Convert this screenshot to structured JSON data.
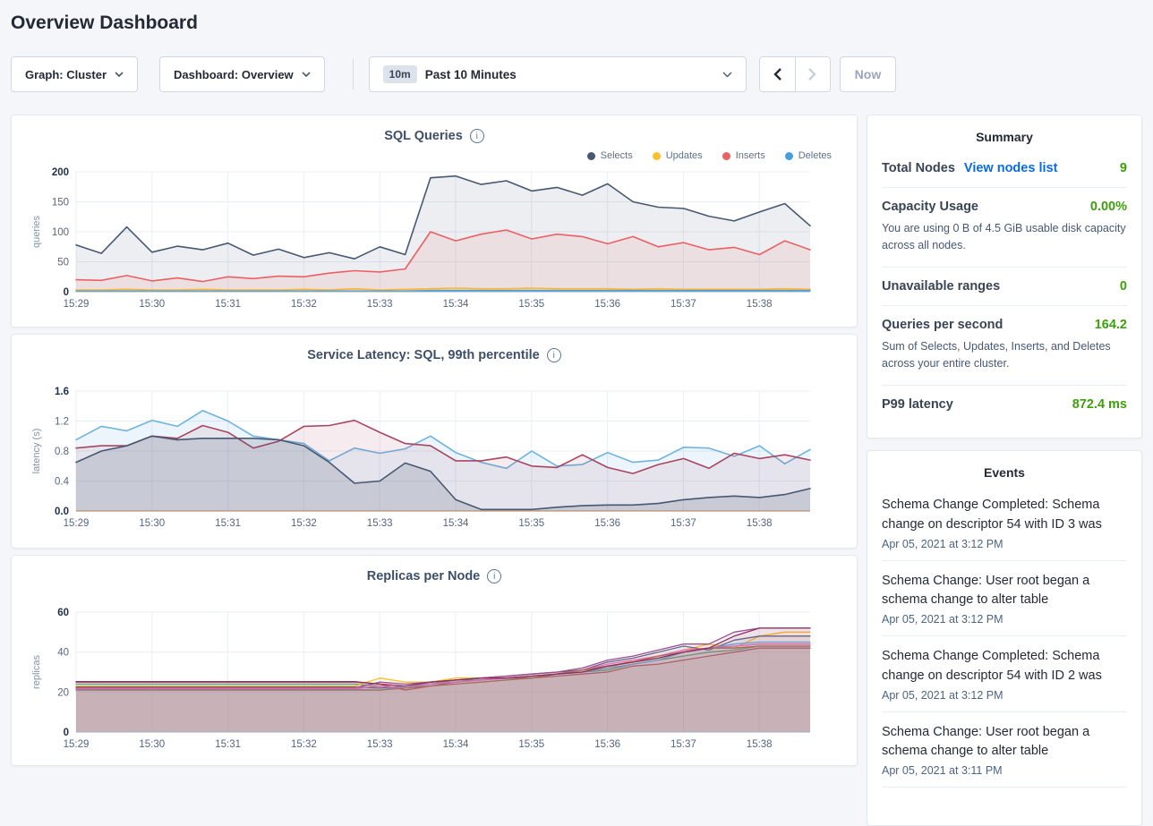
{
  "page": {
    "title": "Overview Dashboard"
  },
  "toolbar": {
    "graph_selector": "Graph: Cluster",
    "dashboard_selector": "Dashboard: Overview",
    "range_badge": "10m",
    "range_label": "Past 10 Minutes",
    "now_label": "Now"
  },
  "colors": {
    "value_green": "#3da00b",
    "link_blue": "#0a6ce0",
    "selects": "#475872",
    "updates": "#ffbf2b",
    "inserts": "#ec6063",
    "deletes": "#449fdc"
  },
  "summary": {
    "title": "Summary",
    "total_nodes": {
      "label": "Total Nodes",
      "link": "View nodes list",
      "value": "9"
    },
    "capacity": {
      "label": "Capacity Usage",
      "value": "0.00%",
      "description": "You are using 0 B of 4.5 GiB usable disk capacity across all nodes."
    },
    "unavailable": {
      "label": "Unavailable ranges",
      "value": "0"
    },
    "qps": {
      "label": "Queries per second",
      "value": "164.2",
      "description": "Sum of Selects, Updates, Inserts, and Deletes across your entire cluster."
    },
    "p99": {
      "label": "P99 latency",
      "value": "872.4 ms"
    }
  },
  "events": {
    "title": "Events",
    "items": [
      {
        "text": "Schema Change Completed: Schema change on descriptor 54 with ID 3 was",
        "time": "Apr 05, 2021 at 3:12 PM"
      },
      {
        "text": "Schema Change: User root began a schema change to alter table",
        "time": "Apr 05, 2021 at 3:12 PM"
      },
      {
        "text": "Schema Change Completed: Schema change on descriptor 54 with ID 2 was",
        "time": "Apr 05, 2021 at 3:12 PM"
      },
      {
        "text": "Schema Change: User root began a schema change to alter table",
        "time": "Apr 05, 2021 at 3:11 PM"
      }
    ]
  },
  "chart_data": [
    {
      "type": "area",
      "title": "SQL Queries",
      "ylabel": "queries",
      "ymax": 200,
      "yticks": [
        0,
        50,
        100,
        150,
        200
      ],
      "ytick_labels": [
        "0",
        "50",
        "100",
        "150",
        "200"
      ],
      "x_tick_labels": [
        "15:29",
        "15:30",
        "15:31",
        "15:32",
        "15:33",
        "15:34",
        "15:35",
        "15:36",
        "15:37",
        "15:38"
      ],
      "x_total_minutes": 9.67,
      "legend": true,
      "line_width": 1.6,
      "axis_color": "#9fb0c1",
      "series": [
        {
          "name": "Selects",
          "color": "#475872",
          "fill_alpha": 0.1,
          "values": [
            78,
            64,
            108,
            66,
            76,
            70,
            81,
            61,
            71,
            57,
            65,
            55,
            75,
            62,
            190,
            193,
            179,
            185,
            168,
            174,
            161,
            180,
            150,
            141,
            139,
            126,
            118,
            133,
            147,
            110
          ]
        },
        {
          "name": "Updates",
          "color": "#ffbf2b",
          "fill_alpha": 0.15,
          "values": [
            3,
            3,
            4,
            3,
            3,
            4,
            3,
            3,
            3,
            4,
            3,
            5,
            3,
            4,
            5,
            6,
            5,
            5,
            6,
            5,
            5,
            5,
            4,
            5,
            4,
            4,
            4,
            4,
            5,
            4
          ]
        },
        {
          "name": "Inserts",
          "color": "#ec6063",
          "fill_alpha": 0.1,
          "values": [
            20,
            19,
            27,
            18,
            23,
            17,
            25,
            22,
            26,
            25,
            31,
            35,
            33,
            38,
            100,
            85,
            96,
            103,
            88,
            96,
            92,
            80,
            92,
            75,
            82,
            70,
            74,
            62,
            85,
            70
          ]
        },
        {
          "name": "Deletes",
          "color": "#449fdc",
          "fill_alpha": 0.15,
          "values": [
            1,
            1,
            1,
            1,
            1,
            1,
            1,
            1,
            1,
            1,
            1,
            1,
            1,
            1,
            2,
            2,
            2,
            2,
            2,
            2,
            2,
            2,
            2,
            2,
            2,
            2,
            2,
            2,
            2,
            2
          ]
        }
      ]
    },
    {
      "type": "area",
      "title": "Service Latency: SQL, 99th percentile",
      "ylabel": "latency (s)",
      "ymax": 1.6,
      "yticks": [
        0,
        0.4,
        0.8,
        1.2,
        1.6
      ],
      "ytick_labels": [
        "0.0",
        "0.4",
        "0.8",
        "1.2",
        "1.6"
      ],
      "x_tick_labels": [
        "15:29",
        "15:30",
        "15:31",
        "15:32",
        "15:33",
        "15:34",
        "15:35",
        "15:36",
        "15:37",
        "15:38"
      ],
      "x_total_minutes": 9.67,
      "legend": false,
      "line_width": 1.6,
      "axis_color": "#ad7d55",
      "series": [
        {
          "color": "#6fb3de",
          "fill_alpha": 0.13,
          "values": [
            0.95,
            1.13,
            1.07,
            1.21,
            1.13,
            1.34,
            1.2,
            1.0,
            0.95,
            0.9,
            0.67,
            0.84,
            0.77,
            0.83,
            1.0,
            0.78,
            0.65,
            0.57,
            0.8,
            0.6,
            0.62,
            0.78,
            0.65,
            0.68,
            0.85,
            0.84,
            0.73,
            0.87,
            0.63,
            0.82
          ]
        },
        {
          "color": "#aa4560",
          "fill_alpha": 0.1,
          "values": [
            0.84,
            0.87,
            0.87,
            1.0,
            0.97,
            1.14,
            1.05,
            0.84,
            0.93,
            1.13,
            1.14,
            1.21,
            1.05,
            0.9,
            0.87,
            0.67,
            0.67,
            0.72,
            0.6,
            0.58,
            0.75,
            0.58,
            0.5,
            0.62,
            0.7,
            0.57,
            0.77,
            0.7,
            0.75,
            0.68
          ]
        },
        {
          "color": "#475872",
          "fill_alpha": 0.18,
          "values": [
            0.65,
            0.8,
            0.87,
            1.0,
            0.95,
            0.97,
            0.97,
            0.97,
            0.95,
            0.87,
            0.65,
            0.37,
            0.4,
            0.64,
            0.53,
            0.15,
            0.02,
            0.02,
            0.02,
            0.05,
            0.07,
            0.08,
            0.08,
            0.1,
            0.15,
            0.18,
            0.2,
            0.18,
            0.22,
            0.3
          ]
        }
      ]
    },
    {
      "type": "area",
      "title": "Replicas per Node",
      "ylabel": "replicas",
      "ymax": 60,
      "yticks": [
        0,
        20,
        40,
        60
      ],
      "ytick_labels": [
        "0",
        "20",
        "40",
        "60"
      ],
      "x_tick_labels": [
        "15:29",
        "15:30",
        "15:31",
        "15:32",
        "15:33",
        "15:34",
        "15:35",
        "15:36",
        "15:37",
        "15:38"
      ],
      "x_total_minutes": 9.67,
      "legend": false,
      "line_width": 1.3,
      "axis_color": "#9fb0c1",
      "series": [
        {
          "color": "#c0515d",
          "fill_alpha": 0.08,
          "values": [
            25,
            25,
            25,
            25,
            25,
            25,
            25,
            25,
            25,
            25,
            25,
            25,
            24,
            21,
            23,
            25,
            26,
            27,
            27,
            28,
            29,
            30,
            33,
            34,
            36,
            38,
            40,
            42,
            42,
            42
          ]
        },
        {
          "color": "#4daf7c",
          "fill_alpha": 0.08,
          "values": [
            24,
            24,
            24,
            24,
            24,
            24,
            24,
            24,
            24,
            24,
            24,
            24,
            23,
            22,
            24,
            26,
            26,
            27,
            28,
            29,
            30,
            31,
            34,
            36,
            38,
            40,
            41,
            43,
            43,
            43
          ]
        },
        {
          "color": "#ffbf2b",
          "fill_alpha": 0.08,
          "values": [
            23,
            23,
            23,
            23,
            23,
            23,
            23,
            23,
            23,
            23,
            23,
            23,
            27,
            25,
            25,
            27,
            27,
            28,
            29,
            30,
            31,
            32,
            36,
            38,
            41,
            44,
            42,
            48,
            50,
            50
          ]
        },
        {
          "color": "#5f6c80",
          "fill_alpha": 0.08,
          "values": [
            22.5,
            22.5,
            22.5,
            22.5,
            22.5,
            22.5,
            22.5,
            22.5,
            22.5,
            22.5,
            22.5,
            22.5,
            22,
            23,
            25,
            26,
            27,
            28,
            29,
            30,
            31,
            35,
            37,
            40,
            43,
            41,
            46,
            48,
            48,
            48
          ]
        },
        {
          "color": "#9e4d96",
          "fill_alpha": 0.08,
          "values": [
            22,
            22,
            22,
            22,
            22,
            22,
            22,
            22,
            22,
            22,
            22,
            22,
            25,
            24,
            25,
            26,
            27,
            28,
            29,
            30,
            32,
            36,
            38,
            41,
            44,
            44,
            50,
            52,
            52,
            52
          ]
        },
        {
          "color": "#6aa8dd",
          "fill_alpha": 0.08,
          "values": [
            21.5,
            21.5,
            21.5,
            21.5,
            21.5,
            21.5,
            21.5,
            21.5,
            21.5,
            21.5,
            21.5,
            21.5,
            21,
            23,
            24,
            25,
            26,
            27,
            28,
            29,
            30,
            32,
            34,
            36,
            40,
            42,
            44,
            45,
            45,
            45
          ]
        },
        {
          "color": "#e86ab5",
          "fill_alpha": 0.08,
          "values": [
            21.8,
            21.8,
            21.8,
            21.8,
            21.8,
            21.8,
            21.8,
            21.8,
            21.8,
            21.8,
            21.8,
            21.8,
            23,
            22,
            24,
            25,
            26,
            27,
            28,
            29,
            31,
            34,
            36,
            38,
            41,
            42,
            43,
            44,
            44,
            44
          ]
        },
        {
          "color": "#a8705a",
          "fill_alpha": 0.08,
          "values": [
            21,
            21,
            21,
            21,
            21,
            21,
            21,
            21,
            21,
            21,
            21,
            21,
            21,
            22,
            23,
            24,
            25,
            26,
            27,
            29,
            31,
            33,
            35,
            38,
            40,
            42,
            42,
            43,
            43,
            43
          ]
        },
        {
          "color": "#8b2f5e",
          "fill_alpha": 0.08,
          "values": [
            25.2,
            25.2,
            25.2,
            25.2,
            25.2,
            25.2,
            25.2,
            25.2,
            25.2,
            25.2,
            25.2,
            25.2,
            24,
            23,
            25,
            26,
            27,
            27,
            28,
            29,
            30,
            33,
            35,
            37,
            40,
            42,
            48,
            52,
            52,
            52
          ]
        }
      ]
    }
  ]
}
